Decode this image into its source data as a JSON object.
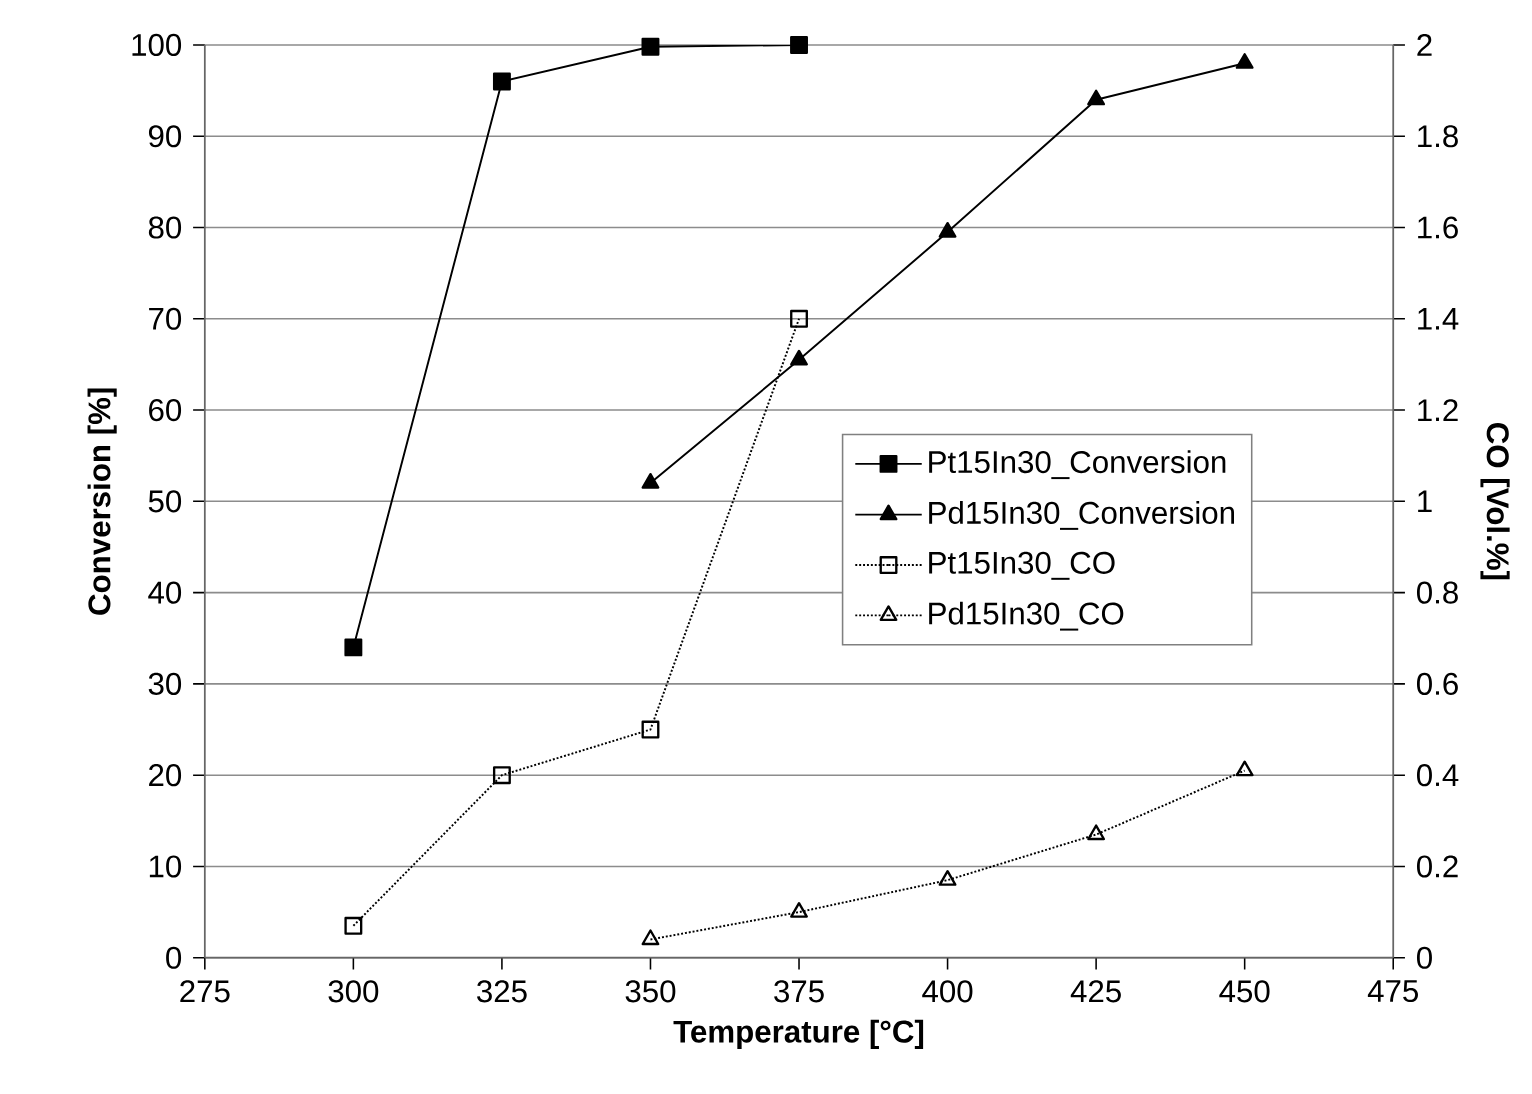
{
  "chart_data": {
    "type": "line",
    "xlabel": "Temperature [°C]",
    "ylabel": "Conversion [%]",
    "y2label": "CO [Vol.%]",
    "xlim": [
      275,
      475
    ],
    "xticks": [
      275,
      300,
      325,
      350,
      375,
      400,
      425,
      450,
      475
    ],
    "ylim": [
      0,
      100
    ],
    "yticks": [
      0,
      10,
      20,
      30,
      40,
      50,
      60,
      70,
      80,
      90,
      100
    ],
    "y2lim": [
      0,
      2
    ],
    "y2ticks": [
      0,
      0.2,
      0.4,
      0.6,
      0.8,
      1,
      1.2,
      1.4,
      1.6,
      1.8,
      2
    ],
    "grid": "y",
    "legend": "right",
    "series": [
      {
        "name": "Pt15In30_Conversion",
        "color": "#000000",
        "marker": "square",
        "line_style": "solid",
        "x": [
          300,
          325,
          350,
          375
        ],
        "values": [
          34,
          96,
          99.8,
          100
        ]
      },
      {
        "name": "Pd15In30_Conversion",
        "color": "#000000",
        "marker": "triangle",
        "line_style": "solid",
        "x": [
          350,
          375,
          400,
          425,
          450
        ],
        "values": [
          52,
          65.5,
          79.5,
          94,
          98
        ]
      },
      {
        "name": "Pt15In30_CO",
        "color": "#000000",
        "marker": "square",
        "line_style": "dotted",
        "axis": "y2",
        "x": [
          300,
          325,
          350,
          375
        ],
        "values": [
          0.07,
          0.4,
          0.5,
          1.4
        ]
      },
      {
        "name": "Pd15In30_CO",
        "color": "#000000",
        "marker": "triangle",
        "line_style": "dotted",
        "axis": "y2",
        "x": [
          350,
          375,
          400,
          425,
          450
        ],
        "values": [
          0.04,
          0.1,
          0.17,
          0.27,
          0.41
        ]
      }
    ]
  }
}
